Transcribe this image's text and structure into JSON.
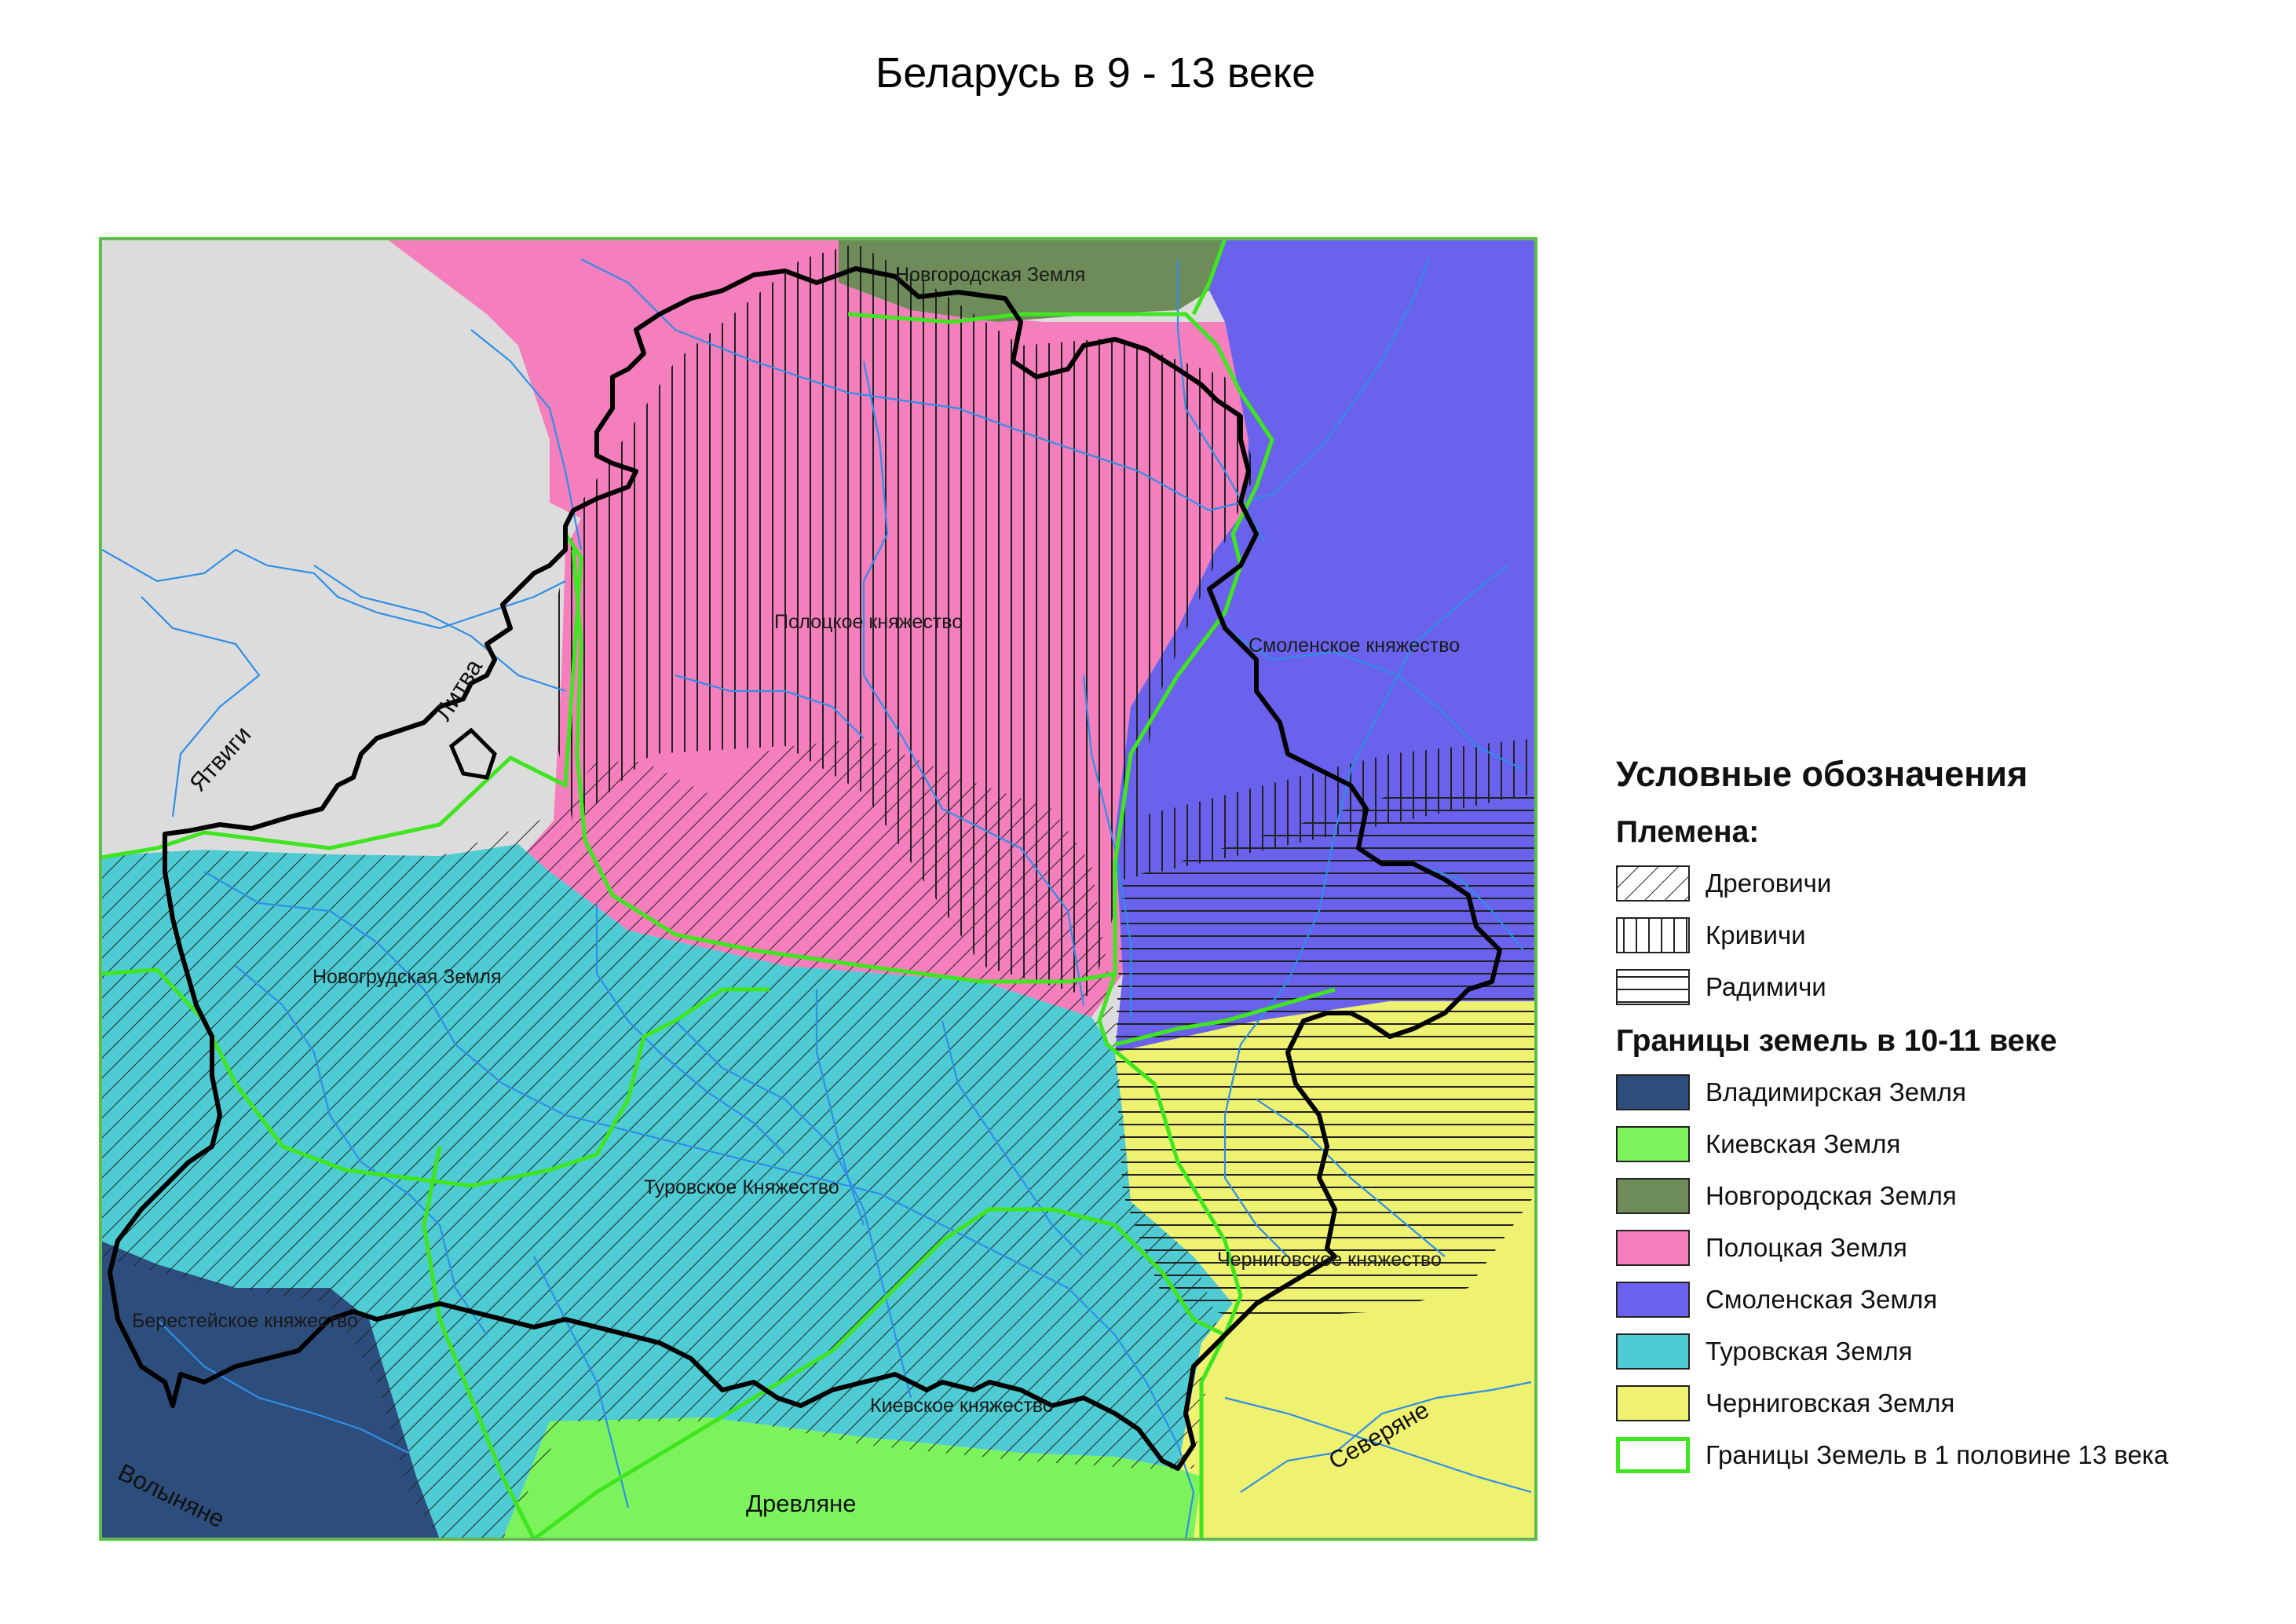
{
  "title": "Беларусь в 9 - 13 веке",
  "map": {
    "region_labels": {
      "novgorod": "Новгородская Земля",
      "polotsk": "Полоцкое княжество",
      "smolensk": "Смоленское княжество",
      "novogrudok": "Новогрудская Земля",
      "turov": "Туровское Княжество",
      "chernigov": "Черниговское княжество",
      "berestye": "Берестейское княжество",
      "kiev": "Киевское княжество"
    },
    "tribe_labels": {
      "yatvingians": "Ятвиги",
      "lithuania": "Литва",
      "volhynians": "Волыняне",
      "drevlyane": "Древляне",
      "severyane": "Северяне"
    }
  },
  "legend": {
    "title": "Условные обозначения",
    "tribes_heading": "Племена:",
    "tribes": [
      {
        "label": "Дреговичи",
        "pattern": "diagonal-hatch"
      },
      {
        "label": "Кривичи",
        "pattern": "vertical-hatch"
      },
      {
        "label": "Радимичи",
        "pattern": "horizontal-hatch"
      }
    ],
    "lands_heading": "Границы земель в 10-11 веке",
    "lands": [
      {
        "label": "Владимирская Земля",
        "color": "#2d4d7c"
      },
      {
        "label": "Киевская Земля",
        "color": "#7cf35c"
      },
      {
        "label": "Новгородская Земля",
        "color": "#6e8b5a"
      },
      {
        "label": "Полоцкая Земля",
        "color": "#f57ebd"
      },
      {
        "label": "Смоленская Земля",
        "color": "#6a62ec"
      },
      {
        "label": "Туровская Земля",
        "color": "#4ecbd3"
      },
      {
        "label": "Черниговская Земля",
        "color": "#eff171"
      }
    ],
    "border_item": {
      "label": "Границы Земель в 1 половине 13 века",
      "color": "#3fe51f"
    }
  }
}
